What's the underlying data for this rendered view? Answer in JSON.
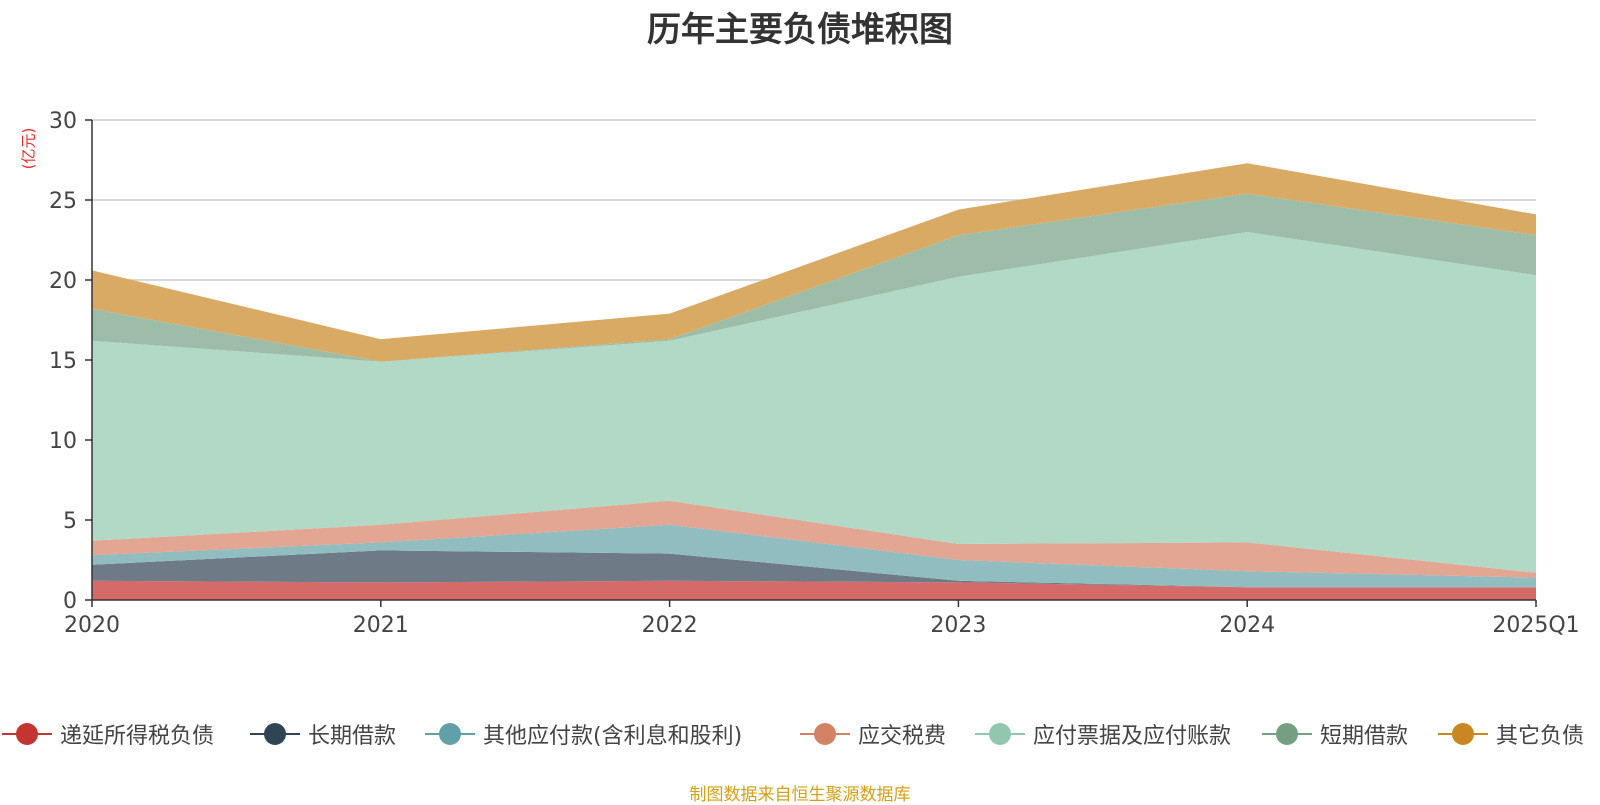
{
  "chart_data": {
    "type": "area",
    "stacked": true,
    "title": "历年主要负债堆积图",
    "ylabel": "(亿元)",
    "xlabel": "",
    "categories": [
      "2020",
      "2021",
      "2022",
      "2023",
      "2024",
      "2025Q1"
    ],
    "ylim": [
      0,
      30
    ],
    "yticks": [
      0,
      5,
      10,
      15,
      20,
      25,
      30
    ],
    "grid": true,
    "legend_position": "bottom",
    "source": "制图数据来自恒生聚源数据库",
    "series": [
      {
        "name": "递延所得税负债",
        "color": "#c23531",
        "fill": "#d46b68",
        "values": [
          1.2,
          1.1,
          1.2,
          1.1,
          0.8,
          0.8
        ]
      },
      {
        "name": "长期借款",
        "color": "#2f4554",
        "fill": "#6e7b86",
        "values": [
          1.0,
          2.0,
          1.7,
          0.1,
          0.0,
          0.0
        ]
      },
      {
        "name": "其他应付款(含利息和股利)",
        "color": "#61a0a8",
        "fill": "#91bcc0",
        "values": [
          0.6,
          0.5,
          1.8,
          1.3,
          1.0,
          0.6
        ]
      },
      {
        "name": "应交税费",
        "color": "#d48265",
        "fill": "#e3a692",
        "values": [
          0.9,
          1.1,
          1.5,
          1.0,
          1.8,
          0.3
        ]
      },
      {
        "name": "应付票据及应付账款",
        "color": "#91c7ae",
        "fill": "#b1d9c6",
        "values": [
          12.5,
          10.2,
          10.0,
          16.7,
          19.4,
          18.6
        ]
      },
      {
        "name": "短期借款",
        "color": "#749f83",
        "fill": "#9ebda9",
        "values": [
          2.0,
          0.0,
          0.1,
          2.6,
          2.4,
          2.5
        ]
      },
      {
        "name": "其它负债",
        "color": "#ca8622",
        "fill": "#d9aa64",
        "values": [
          2.4,
          1.4,
          1.6,
          1.6,
          1.9,
          1.3
        ]
      }
    ]
  }
}
